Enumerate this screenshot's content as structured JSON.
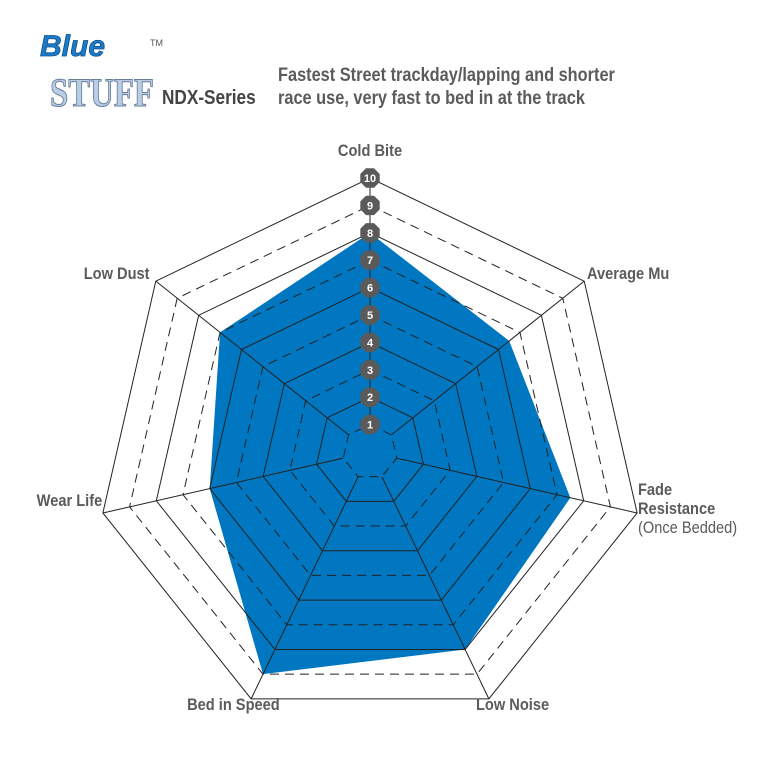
{
  "header": {
    "logo_text_top": "Blue",
    "logo_text_bottom": "STUFF",
    "logo_tm": "TM",
    "series": "NDX-Series",
    "description_line1": "Fastest Street trackday/lapping and shorter",
    "description_line2": "race use, very fast to bed in at the track"
  },
  "colors": {
    "fill": "#0077c0",
    "badge": "#5a5a5a",
    "label": "#5b5b5b",
    "grid": "#222222"
  },
  "chart_data": {
    "type": "radar",
    "title": "",
    "range": [
      0,
      10
    ],
    "ticks": [
      "1",
      "2",
      "3",
      "4",
      "5",
      "6",
      "7",
      "8",
      "9",
      "10"
    ],
    "grid": "heptagon rings, even levels solid, odd levels dashed",
    "axes": [
      {
        "label": "Cold Bite",
        "sublabel": ""
      },
      {
        "label": "Average Mu",
        "sublabel": ""
      },
      {
        "label": "Fade",
        "label2": "Resistance",
        "sublabel": "(Once Bedded)"
      },
      {
        "label": "Low Noise",
        "sublabel": ""
      },
      {
        "label": "Bed in Speed",
        "sublabel": ""
      },
      {
        "label": "Wear Life",
        "sublabel": ""
      },
      {
        "label": "Low Dust",
        "sublabel": ""
      }
    ],
    "values": [
      8,
      6.5,
      7.5,
      8,
      9,
      6,
      7
    ]
  }
}
